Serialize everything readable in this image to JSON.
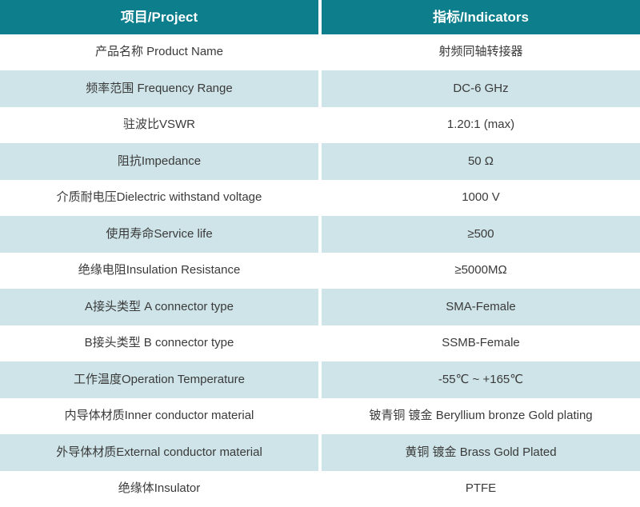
{
  "table": {
    "header": {
      "project": "项目/Project",
      "indicators": "指标/Indicators"
    },
    "rows": [
      {
        "project": "产品名称 Product Name",
        "indicator": "射频同轴转接器"
      },
      {
        "project": "频率范围 Frequency Range",
        "indicator": "DC-6 GHz"
      },
      {
        "project": "驻波比VSWR",
        "indicator": "1.20:1 (max)"
      },
      {
        "project": "阻抗Impedance",
        "indicator": "50 Ω"
      },
      {
        "project": "介质耐电压Dielectric withstand voltage",
        "indicator": "1000 V"
      },
      {
        "project": "使用寿命Service life",
        "indicator": "≥500"
      },
      {
        "project": "绝缘电阻Insulation Resistance",
        "indicator": "≥5000MΩ"
      },
      {
        "project": "A接头类型 A connector type",
        "indicator": "SMA-Female"
      },
      {
        "project": "B接头类型 B connector type",
        "indicator": "SSMB-Female"
      },
      {
        "project": "工作温度Operation Temperature",
        "indicator": "-55℃ ~ +165℃"
      },
      {
        "project": "内导体材质Inner conductor material",
        "indicator": "铍青铜 镀金 Beryllium bronze Gold plating"
      },
      {
        "project": "外导体材质External conductor material",
        "indicator": "黄铜 镀金 Brass Gold Plated"
      },
      {
        "project": "绝缘体Insulator",
        "indicator": "PTFE"
      }
    ],
    "colors": {
      "header_bg": "#0c7e8c",
      "header_text": "#ffffff",
      "row_alt_bg": "#cee4e8",
      "text": "#3a3a3a",
      "divider": "#ffffff"
    }
  }
}
